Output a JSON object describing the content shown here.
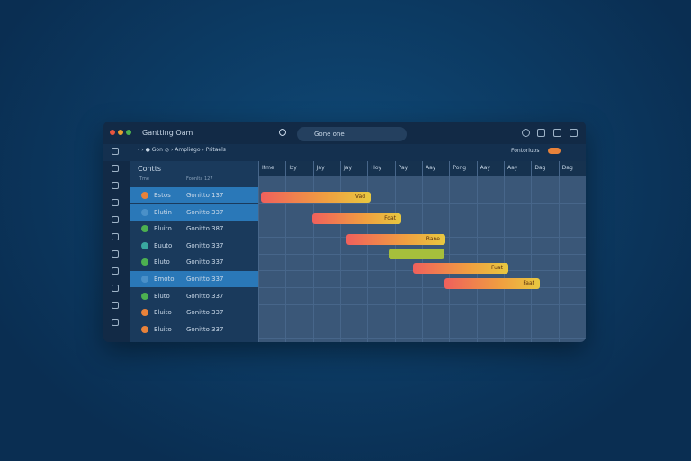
{
  "window": {
    "title": "Gantting Oam",
    "search": "Gone one"
  },
  "toolbar": {
    "breadcrumbs": [
      "Gon",
      "Ampliego",
      "Pritaels"
    ],
    "filter": "Fontoriuos"
  },
  "tasks": {
    "title": "Contts",
    "columns": [
      "Tme",
      "Foonlta 127"
    ],
    "rows": [
      [
        "Estos",
        "Gonitto 137"
      ],
      [
        "Elutin",
        "Gonitto 337"
      ],
      [
        "Eluito",
        "Gonitto 387"
      ],
      [
        "Euuto",
        "Gonitto 337"
      ],
      [
        "Eluto",
        "Gonitto 337"
      ],
      [
        "Emoto",
        "Gonitto 337"
      ],
      [
        "Eluto",
        "Gonitto 337"
      ],
      [
        "Eluito",
        "Gonitto 337"
      ],
      [
        "Eluito",
        "Gonitto 337"
      ]
    ]
  },
  "timeline": {
    "columns": [
      "Itme",
      "Izy",
      "Jay",
      "Jay",
      "Hoy",
      "Pay",
      "Aay",
      "Pong",
      "Aay",
      "Aay",
      "Dag",
      "Dag"
    ],
    "bar_labels": [
      "Vad",
      "Foat",
      "Bane",
      "Fuat",
      "Faat"
    ]
  }
}
